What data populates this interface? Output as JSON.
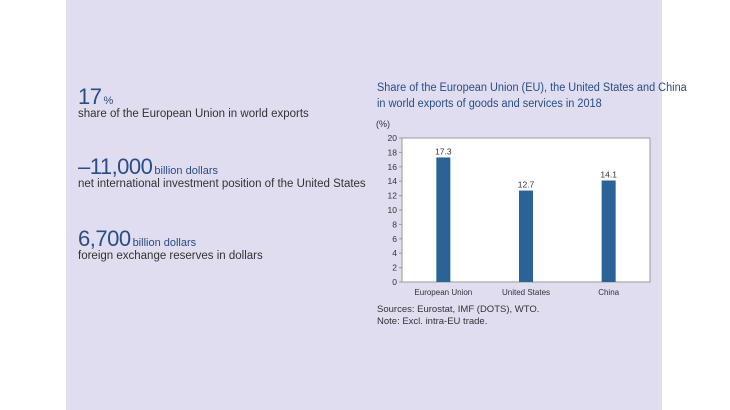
{
  "stats": [
    {
      "value": "17",
      "unit": "%",
      "description": "share of the European Union in world exports"
    },
    {
      "value": "–11,000",
      "unit": "billion dollars",
      "description": "net international investment position of the United States"
    },
    {
      "value": "6,700",
      "unit": "billion dollars",
      "description": "foreign exchange reserves in dollars"
    }
  ],
  "chart_data": {
    "type": "bar",
    "title": "Share of the European Union (EU), the United States and China in world exports of goods and services in 2018",
    "title_lines": [
      "Share of the European Union (EU), the United States and China",
      "in world exports of goods and services in 2018"
    ],
    "ylabel": "(%)",
    "categories": [
      "European Union",
      "United States",
      "China"
    ],
    "values": [
      17.3,
      12.7,
      14.1
    ],
    "value_labels": [
      "17.3",
      "12.7",
      "14.1"
    ],
    "ylim": [
      0,
      20
    ],
    "yticks": [
      0,
      2,
      4,
      6,
      8,
      10,
      12,
      14,
      16,
      18,
      20
    ],
    "grid": false,
    "bar_color": "#2a6496"
  },
  "notes": {
    "sources": "Sources: Eurostat, IMF (DOTS), WTO.",
    "note": "Note: Excl. intra-EU trade."
  },
  "colors": {
    "panel_background": "#dfddef",
    "accent": "#2a4d85"
  }
}
